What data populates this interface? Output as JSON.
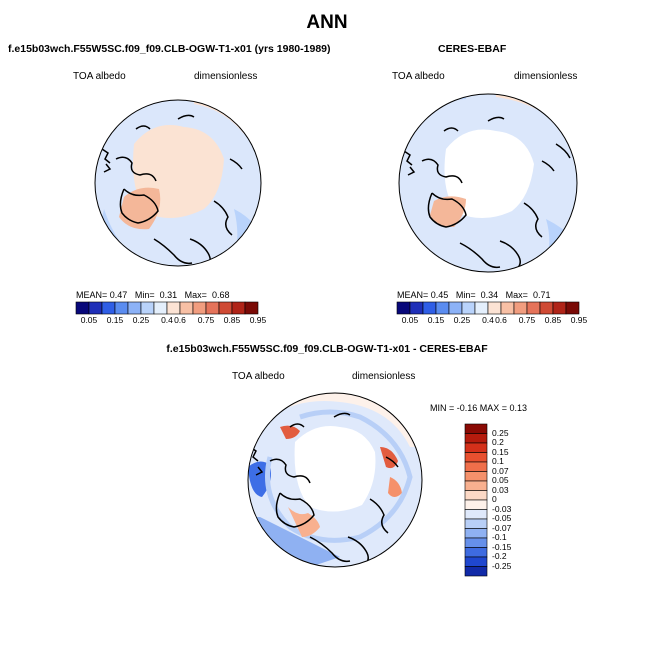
{
  "title": "ANN",
  "panels": [
    {
      "title": "f.e15b03wch.F55W5SC.f09_f09.CLB-OGW-T1-x01 (yrs 1980-1989)",
      "variable": "TOA albedo",
      "units": "dimensionless",
      "stats": {
        "mean_label": "MEAN=",
        "mean": "0.47",
        "min_label": "Min=",
        "min": "0.31",
        "max_label": "Max=",
        "max": "0.68"
      }
    },
    {
      "title": "CERES-EBAF",
      "variable": "TOA albedo",
      "units": "dimensionless",
      "stats": {
        "mean_label": "MEAN=",
        "mean": "0.45",
        "min_label": "Min=",
        "min": "0.34",
        "max_label": "Max=",
        "max": "0.71"
      }
    }
  ],
  "abs_colorbar": {
    "labels": [
      "0.05",
      "0.15",
      "0.25",
      "0.4",
      "0.6",
      "0.75",
      "0.85",
      "0.95"
    ],
    "colors": [
      "#08087a",
      "#1f2fb8",
      "#2f5ee6",
      "#5a8cf0",
      "#8cb2f7",
      "#b9d3fb",
      "#e4effc",
      "#fce3d4",
      "#f8c0a5",
      "#f19d7f",
      "#e5735a",
      "#cf4a34",
      "#b02418",
      "#7a0a06"
    ]
  },
  "diff_panel": {
    "title": "f.e15b03wch.F55W5SC.f09_f09.CLB-OGW-T1-x01 - CERES-EBAF",
    "variable": "TOA albedo",
    "units": "dimensionless",
    "minmax": "MIN =  -0.16  MAX =   0.13",
    "colorbar": {
      "labels": [
        "0.25",
        "0.2",
        "0.15",
        "0.1",
        "0.07",
        "0.05",
        "0.03",
        "0",
        "-0.03",
        "-0.05",
        "-0.07",
        "-0.1",
        "-0.15",
        "-0.2",
        "-0.25"
      ],
      "colors": [
        "#8a0a04",
        "#b51b0d",
        "#d4301a",
        "#e8502f",
        "#f06f4a",
        "#f5916b",
        "#f8b08f",
        "#fcd9c6",
        "#fdf1ea",
        "#dfe9fb",
        "#b8cff7",
        "#8fb1f2",
        "#6690ea",
        "#3e6be0",
        "#1f47cf",
        "#112aa8"
      ]
    }
  },
  "map_colors": {
    "ocean_light": "#dbe7fb",
    "arctic_high": "#fbe3d3",
    "greenland": "#f4b799",
    "arctic_white": "#ffffff",
    "neg_blue": "#3d6ee6",
    "pos_red": "#e25c3f"
  }
}
